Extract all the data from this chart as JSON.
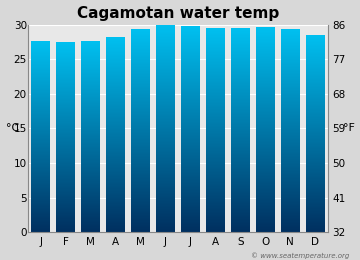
{
  "title": "Cagamotan water temp",
  "months": [
    "J",
    "F",
    "M",
    "A",
    "M",
    "J",
    "J",
    "A",
    "S",
    "O",
    "N",
    "D"
  ],
  "values_c": [
    27.5,
    27.3,
    27.5,
    28.1,
    29.2,
    30.0,
    29.6,
    29.4,
    29.3,
    29.5,
    29.2,
    28.4
  ],
  "ylim_c": [
    0,
    30
  ],
  "yticks_c": [
    0,
    5,
    10,
    15,
    20,
    25,
    30
  ],
  "yticks_f": [
    32,
    41,
    50,
    59,
    68,
    77,
    86
  ],
  "ylabel_left": "°C",
  "ylabel_right": "°F",
  "watermark": "© www.seatemperature.org",
  "bg_color": "#d8d8d8",
  "plot_bg_color": "#e8e8e8",
  "bar_color_top": "#00c0f0",
  "bar_color_bottom": "#003060",
  "title_fontsize": 11,
  "bar_width": 0.75
}
